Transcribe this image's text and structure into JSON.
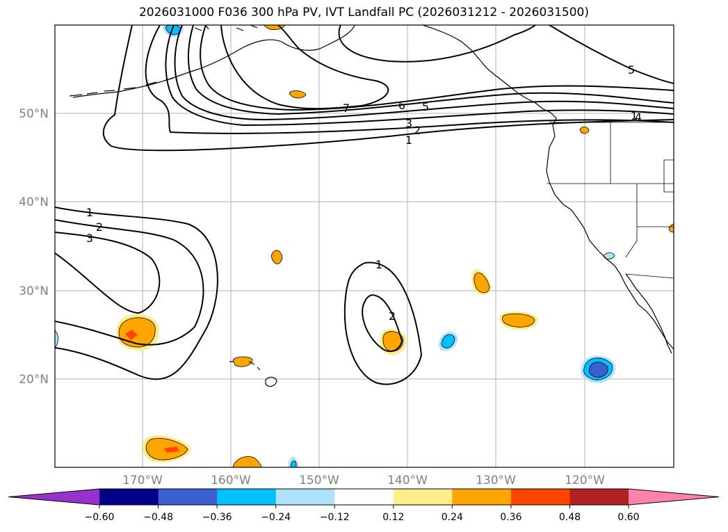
{
  "title": "2026031000 F036 300 hPa PV, IVT Landfall PC (2026031212 - 2026031500)",
  "lat_labels": [
    "50°N",
    "40°N",
    "30°N",
    "20°N"
  ],
  "lon_labels": [
    "170°W",
    "160°W",
    "150°W",
    "140°W",
    "130°W",
    "120°W"
  ],
  "contour_labels": [
    "1",
    "2",
    "3",
    "4",
    "5",
    "5",
    "6",
    "7",
    "3",
    "2",
    "1",
    "1",
    "2",
    "3",
    "1",
    "2"
  ],
  "colorbar": {
    "colors": [
      "#9932cc",
      "#00008b",
      "#3a5fcd",
      "#00bfff",
      "#b0e2ff",
      "#ffffff",
      "#ffec8b",
      "#ffa500",
      "#ff4500",
      "#b22222",
      "#ff82ab"
    ],
    "ticks": [
      "−0.60",
      "−0.48",
      "−0.36",
      "−0.24",
      "−0.12",
      "0.12",
      "0.24",
      "0.36",
      "0.48",
      "0.60"
    ]
  }
}
